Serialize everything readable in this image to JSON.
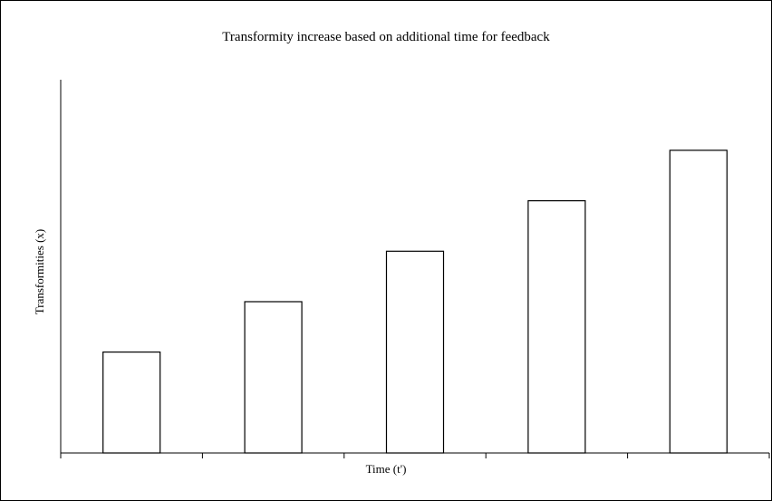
{
  "chart_data": {
    "type": "bar",
    "title": "Transformity increase based on additional time for feedback",
    "xlabel": "Time (t')",
    "ylabel": "Transformities (x)",
    "categories": [
      "",
      "",
      "",
      "",
      ""
    ],
    "values": [
      1,
      1.5,
      2,
      2.5,
      3
    ],
    "ylim": [
      0,
      3.7
    ],
    "grid": false,
    "legend": "none",
    "colors": {
      "bar_fill": "#ffffff",
      "bar_stroke": "#000000",
      "axis": "#000000"
    }
  }
}
